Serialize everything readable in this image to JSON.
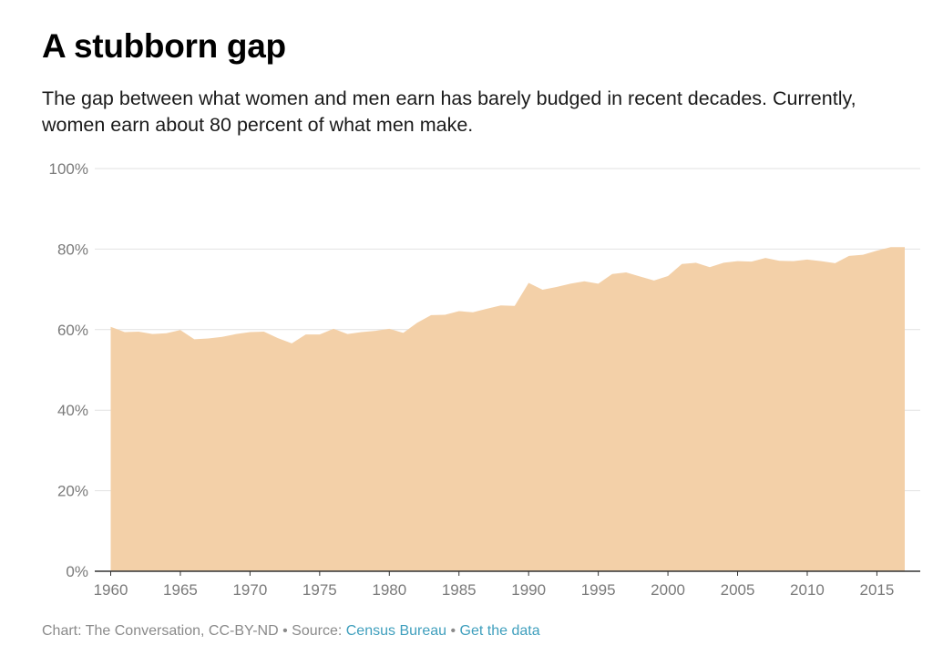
{
  "footer": {
    "credit": "Chart: The Conversation, CC-BY-ND",
    "sep1": " • ",
    "source_label": "Source: ",
    "source_link": "Census Bureau",
    "sep2": " • ",
    "data_link": "Get the data"
  },
  "colors": {
    "area_fill": "#f3d0a8",
    "gridline": "#e2e2e2",
    "axis": "#333333",
    "link": "#3f9fbd"
  },
  "chart_data": {
    "type": "area",
    "title": "A stubborn gap",
    "subtitle": "The gap between what women and men earn has barely budged in recent decades. Currently, women earn about 80 percent of what men make.",
    "xlabel": "",
    "ylabel": "",
    "xlim": [
      1960,
      2017
    ],
    "ylim": [
      0,
      100
    ],
    "grid": true,
    "x_ticks": [
      1960,
      1965,
      1970,
      1975,
      1980,
      1985,
      1990,
      1995,
      2000,
      2005,
      2010,
      2015
    ],
    "y_ticks": [
      0,
      20,
      40,
      60,
      80,
      100
    ],
    "y_tick_labels": [
      "0%",
      "20%",
      "40%",
      "60%",
      "80%",
      "100%"
    ],
    "x": [
      1960,
      1961,
      1962,
      1963,
      1964,
      1965,
      1966,
      1967,
      1968,
      1969,
      1970,
      1971,
      1972,
      1973,
      1974,
      1975,
      1976,
      1977,
      1978,
      1979,
      1980,
      1981,
      1982,
      1983,
      1984,
      1985,
      1986,
      1987,
      1988,
      1989,
      1990,
      1991,
      1992,
      1993,
      1994,
      1995,
      1996,
      1997,
      1998,
      1999,
      2000,
      2001,
      2002,
      2003,
      2004,
      2005,
      2006,
      2007,
      2008,
      2009,
      2010,
      2011,
      2012,
      2013,
      2014,
      2015,
      2016,
      2017
    ],
    "values": [
      60.7,
      59.4,
      59.5,
      58.9,
      59.1,
      59.9,
      57.6,
      57.8,
      58.2,
      58.9,
      59.4,
      59.5,
      57.9,
      56.6,
      58.8,
      58.8,
      60.2,
      58.9,
      59.4,
      59.7,
      60.2,
      59.2,
      61.7,
      63.6,
      63.7,
      64.6,
      64.3,
      65.2,
      66.0,
      65.9,
      71.6,
      69.9,
      70.6,
      71.4,
      72.0,
      71.4,
      73.8,
      74.2,
      73.2,
      72.2,
      73.3,
      76.3,
      76.6,
      75.5,
      76.6,
      77.0,
      76.9,
      77.8,
      77.1,
      77.0,
      77.4,
      77.0,
      76.5,
      78.3,
      78.6,
      79.6,
      80.5,
      80.5
    ]
  }
}
